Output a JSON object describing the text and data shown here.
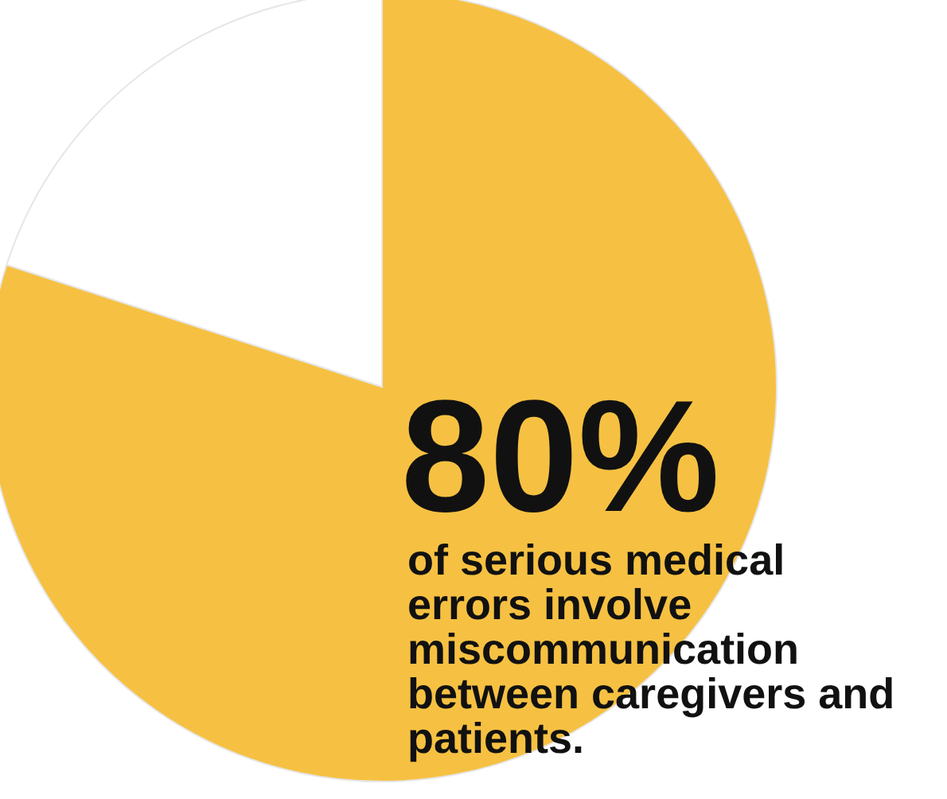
{
  "chart_data": {
    "type": "pie",
    "categories": [
      null,
      null
    ],
    "values": [
      80,
      20
    ],
    "colors": [
      "#f6c142",
      "#ffffff"
    ],
    "value_labels": [
      "80%",
      null
    ],
    "annotations": [
      "of serious medical errors involve miscommunication between caregivers and patients."
    ]
  }
}
